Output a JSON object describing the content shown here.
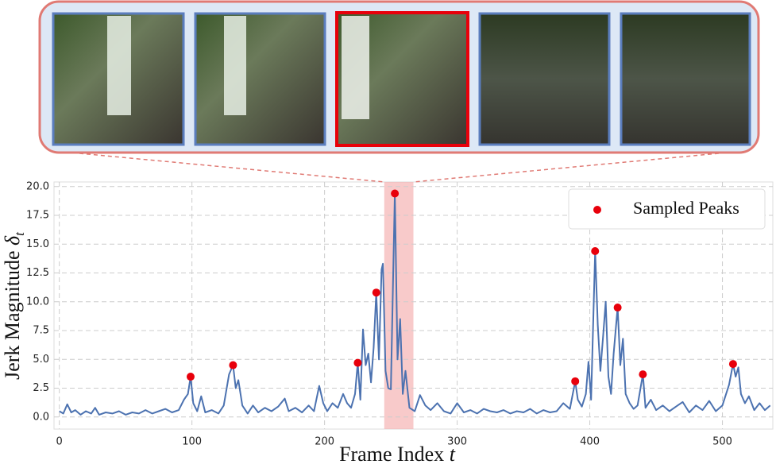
{
  "chart_data": {
    "type": "line",
    "color": "#4c72b0",
    "x": [
      0,
      3,
      6,
      9,
      12,
      16,
      20,
      24,
      27,
      30,
      35,
      40,
      45,
      50,
      55,
      60,
      65,
      70,
      75,
      80,
      85,
      90,
      94,
      97,
      99,
      101,
      104,
      107,
      110,
      115,
      120,
      124,
      128,
      131,
      133,
      135,
      138,
      142,
      146,
      150,
      155,
      160,
      165,
      170,
      173,
      178,
      183,
      188,
      192,
      196,
      199,
      202,
      206,
      210,
      214,
      217,
      220,
      223,
      225,
      227,
      229,
      231,
      233,
      235,
      237,
      239,
      241,
      243,
      244,
      246,
      248,
      250,
      253,
      255,
      257,
      259,
      261,
      264,
      268,
      272,
      276,
      280,
      285,
      290,
      295,
      300,
      305,
      310,
      315,
      320,
      325,
      330,
      335,
      340,
      345,
      350,
      355,
      360,
      365,
      370,
      375,
      380,
      385,
      389,
      391,
      394,
      397,
      399,
      401,
      404,
      406,
      408,
      410,
      412,
      414,
      416,
      418,
      421,
      423,
      425,
      427,
      430,
      433,
      436,
      440,
      442,
      446,
      450,
      455,
      460,
      465,
      470,
      475,
      480,
      485,
      490,
      495,
      500,
      505,
      508,
      510,
      512,
      514,
      517,
      520,
      524,
      528,
      532,
      536
    ],
    "values": [
      0.5,
      0.3,
      1.1,
      0.4,
      0.6,
      0.2,
      0.5,
      0.3,
      0.8,
      0.2,
      0.4,
      0.3,
      0.5,
      0.2,
      0.4,
      0.3,
      0.6,
      0.3,
      0.5,
      0.7,
      0.4,
      0.6,
      1.5,
      2.0,
      3.5,
      1.2,
      0.5,
      1.8,
      0.4,
      0.6,
      0.3,
      1.0,
      3.7,
      4.5,
      2.5,
      3.2,
      1.0,
      0.3,
      1.0,
      0.4,
      0.8,
      0.5,
      0.9,
      1.6,
      0.5,
      0.8,
      0.4,
      1.0,
      0.5,
      2.7,
      1.2,
      0.5,
      1.2,
      0.8,
      2.0,
      1.2,
      0.8,
      2.0,
      4.7,
      1.5,
      7.6,
      4.5,
      5.5,
      3.0,
      6.0,
      10.8,
      5.0,
      12.8,
      13.3,
      4.0,
      2.5,
      2.4,
      19.4,
      5.0,
      8.5,
      2.0,
      4.0,
      0.8,
      0.5,
      1.9,
      1.0,
      0.6,
      1.2,
      0.5,
      0.3,
      1.2,
      0.4,
      0.6,
      0.3,
      0.7,
      0.5,
      0.4,
      0.6,
      0.3,
      0.5,
      0.4,
      0.7,
      0.3,
      0.6,
      0.4,
      0.5,
      1.2,
      0.7,
      3.1,
      1.5,
      0.9,
      2.0,
      4.8,
      1.5,
      14.4,
      8.0,
      4.0,
      7.0,
      10.0,
      3.5,
      2.0,
      5.5,
      9.5,
      4.5,
      6.8,
      2.0,
      1.2,
      0.7,
      1.0,
      3.7,
      0.8,
      1.5,
      0.6,
      1.0,
      0.5,
      0.9,
      1.3,
      0.4,
      1.0,
      0.6,
      1.4,
      0.5,
      1.0,
      2.8,
      4.6,
      3.5,
      4.3,
      2.0,
      1.2,
      1.8,
      0.6,
      1.2,
      0.6,
      1.0
    ],
    "peaks": {
      "name": "Sampled Peaks",
      "color": "#e8000b",
      "x": [
        99,
        131,
        225,
        239,
        253,
        389,
        404,
        421,
        440,
        508
      ],
      "values": [
        3.5,
        4.5,
        4.7,
        10.8,
        19.4,
        3.1,
        14.4,
        9.5,
        3.7,
        4.6
      ]
    },
    "highlight": [
      245,
      267
    ],
    "highlight_color": "#f4a6a6",
    "xlim": [
      -4,
      538
    ],
    "ylim": [
      -1.05,
      20.4
    ],
    "xticks": [
      0,
      100,
      200,
      300,
      400,
      500
    ],
    "yticks": [
      {
        "value": 0,
        "label": "0.0"
      },
      2.5,
      {
        "value": 5,
        "label": "5.0"
      },
      7.5,
      {
        "value": 10,
        "label": "10.0"
      },
      12.5,
      {
        "value": 15,
        "label": "15.0"
      },
      17.5,
      {
        "value": 20,
        "label": "20.0"
      }
    ],
    "grid": true,
    "legend": "upper right",
    "xlabel": {
      "text": "Frame Index",
      "symbol": "t"
    },
    "ylabel": {
      "text": "Jerk Magnitude",
      "symbol": "δ",
      "sub": "t"
    }
  }
}
